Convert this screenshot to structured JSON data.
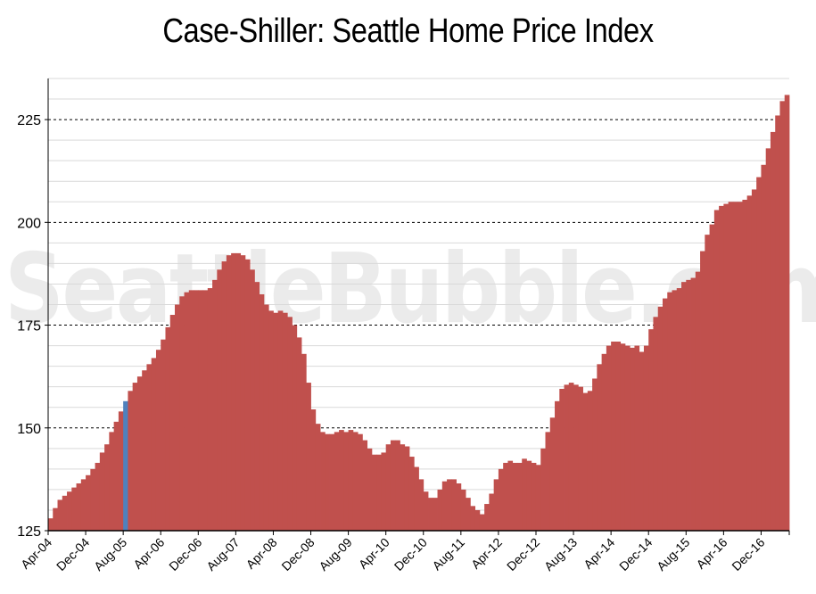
{
  "title": "Case-Shiller: Seattle Home Price Index",
  "watermark": "SeattleBubble.com",
  "colors": {
    "bar": "#c0504d",
    "highlight": "#4f81bd",
    "grid_minor": "#d9d9d9",
    "grid_major": "#000000",
    "axis": "#000000"
  },
  "chart_data": {
    "type": "bar",
    "xlabel": "",
    "ylabel": "",
    "ylim": [
      125,
      235
    ],
    "y_ticks": [
      125,
      150,
      175,
      200,
      225
    ],
    "grid": "dashed at labeled ticks, light lines every 5",
    "highlight_index": 16,
    "x_tick_labels": [
      "Apr-04",
      "Dec-04",
      "Aug-05",
      "Apr-06",
      "Dec-06",
      "Aug-07",
      "Apr-08",
      "Dec-08",
      "Aug-09",
      "Apr-10",
      "Dec-10",
      "Aug-11",
      "Apr-12",
      "Dec-12",
      "Aug-13",
      "Apr-14",
      "Dec-14",
      "Aug-15",
      "Apr-16",
      "Dec-16"
    ],
    "start_month": "Apr-04",
    "values": [
      128.0,
      130.5,
      132.5,
      133.5,
      134.5,
      135.5,
      136.5,
      137.5,
      138.5,
      140.0,
      141.5,
      144.0,
      146.0,
      149.0,
      151.5,
      154.0,
      156.5,
      159.0,
      161.0,
      162.5,
      164.0,
      165.5,
      167.0,
      169.0,
      171.5,
      174.5,
      177.5,
      180.0,
      182.0,
      183.0,
      183.5,
      183.5,
      183.5,
      183.5,
      184.0,
      186.0,
      188.5,
      190.5,
      192.0,
      192.5,
      192.5,
      192.0,
      191.0,
      188.5,
      185.5,
      182.5,
      180.0,
      178.5,
      178.0,
      178.5,
      178.0,
      177.0,
      175.0,
      172.0,
      168.0,
      161.0,
      154.5,
      151.0,
      149.0,
      148.5,
      148.5,
      149.0,
      149.5,
      149.0,
      149.5,
      149.0,
      148.5,
      147.0,
      145.0,
      143.5,
      143.5,
      144.0,
      146.0,
      147.0,
      147.0,
      146.0,
      145.5,
      143.0,
      140.5,
      137.5,
      134.5,
      133.0,
      133.0,
      135.0,
      137.0,
      137.5,
      137.5,
      136.5,
      135.0,
      133.0,
      131.0,
      130.0,
      129.0,
      131.5,
      134.0,
      137.5,
      140.0,
      141.5,
      142.0,
      141.5,
      141.5,
      142.5,
      142.0,
      141.5,
      141.0,
      145.0,
      149.0,
      152.5,
      156.5,
      159.5,
      160.5,
      161.0,
      160.5,
      160.0,
      158.5,
      159.0,
      162.0,
      165.5,
      168.0,
      170.0,
      171.0,
      171.0,
      170.5,
      170.0,
      169.5,
      170.0,
      168.5,
      170.0,
      174.0,
      177.0,
      179.5,
      181.5,
      183.0,
      183.5,
      184.0,
      185.5,
      186.0,
      186.5,
      188.0,
      193.0,
      197.0,
      199.5,
      203.0,
      204.0,
      204.5,
      205.0,
      205.0,
      205.0,
      205.5,
      206.5,
      208.0,
      211.0,
      214.0,
      218.0,
      222.0,
      226.0,
      229.5,
      231.0
    ]
  }
}
